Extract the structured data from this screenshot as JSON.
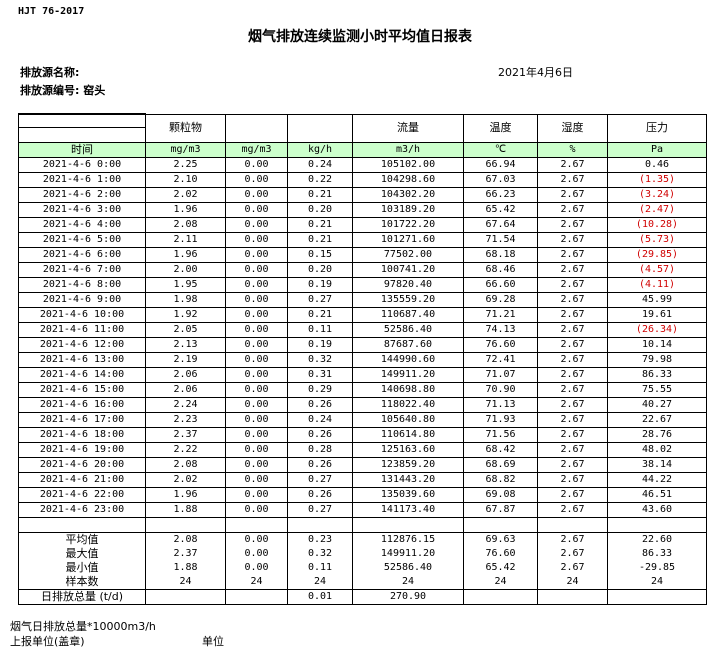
{
  "standard": "HJT  76-2017",
  "title": "烟气排放连续监测小时平均值日报表",
  "source_name_label": "排放源名称:",
  "source_id_label": "排放源编号: 窑头",
  "date": "2021年4月6日",
  "headers": [
    "",
    "颗粒物",
    "",
    "",
    "流量",
    "温度",
    "湿度",
    "压力"
  ],
  "units": [
    "时间",
    "mg/m3",
    "mg/m3",
    "kg/h",
    "m3/h",
    "℃",
    "%",
    "Pa"
  ],
  "rows": [
    [
      "2021-4-6 0:00",
      "2.25",
      "0.00",
      "0.24",
      "105102.00",
      "66.94",
      "2.67",
      "0.46"
    ],
    [
      "2021-4-6 1:00",
      "2.10",
      "0.00",
      "0.22",
      "104298.60",
      "67.03",
      "2.67",
      "(1.35)"
    ],
    [
      "2021-4-6 2:00",
      "2.02",
      "0.00",
      "0.21",
      "104302.20",
      "66.23",
      "2.67",
      "(3.24)"
    ],
    [
      "2021-4-6 3:00",
      "1.96",
      "0.00",
      "0.20",
      "103189.20",
      "65.42",
      "2.67",
      "(2.47)"
    ],
    [
      "2021-4-6 4:00",
      "2.08",
      "0.00",
      "0.21",
      "101722.20",
      "67.64",
      "2.67",
      "(10.28)"
    ],
    [
      "2021-4-6 5:00",
      "2.11",
      "0.00",
      "0.21",
      "101271.60",
      "71.54",
      "2.67",
      "(5.73)"
    ],
    [
      "2021-4-6 6:00",
      "1.96",
      "0.00",
      "0.15",
      "77502.00",
      "68.18",
      "2.67",
      "(29.85)"
    ],
    [
      "2021-4-6 7:00",
      "2.00",
      "0.00",
      "0.20",
      "100741.20",
      "68.46",
      "2.67",
      "(4.57)"
    ],
    [
      "2021-4-6 8:00",
      "1.95",
      "0.00",
      "0.19",
      "97820.40",
      "66.60",
      "2.67",
      "(4.11)"
    ],
    [
      "2021-4-6 9:00",
      "1.98",
      "0.00",
      "0.27",
      "135559.20",
      "69.28",
      "2.67",
      "45.99"
    ],
    [
      "2021-4-6 10:00",
      "1.92",
      "0.00",
      "0.21",
      "110687.40",
      "71.21",
      "2.67",
      "19.61"
    ],
    [
      "2021-4-6 11:00",
      "2.05",
      "0.00",
      "0.11",
      "52586.40",
      "74.13",
      "2.67",
      "(26.34)"
    ],
    [
      "2021-4-6 12:00",
      "2.13",
      "0.00",
      "0.19",
      "87687.60",
      "76.60",
      "2.67",
      "10.14"
    ],
    [
      "2021-4-6 13:00",
      "2.19",
      "0.00",
      "0.32",
      "144990.60",
      "72.41",
      "2.67",
      "79.98"
    ],
    [
      "2021-4-6 14:00",
      "2.06",
      "0.00",
      "0.31",
      "149911.20",
      "71.07",
      "2.67",
      "86.33"
    ],
    [
      "2021-4-6 15:00",
      "2.06",
      "0.00",
      "0.29",
      "140698.80",
      "70.90",
      "2.67",
      "75.55"
    ],
    [
      "2021-4-6 16:00",
      "2.24",
      "0.00",
      "0.26",
      "118022.40",
      "71.13",
      "2.67",
      "40.27"
    ],
    [
      "2021-4-6 17:00",
      "2.23",
      "0.00",
      "0.24",
      "105640.80",
      "71.93",
      "2.67",
      "22.67"
    ],
    [
      "2021-4-6 18:00",
      "2.37",
      "0.00",
      "0.26",
      "110614.80",
      "71.56",
      "2.67",
      "28.76"
    ],
    [
      "2021-4-6 19:00",
      "2.22",
      "0.00",
      "0.28",
      "125163.60",
      "68.42",
      "2.67",
      "48.02"
    ],
    [
      "2021-4-6 20:00",
      "2.08",
      "0.00",
      "0.26",
      "123859.20",
      "68.69",
      "2.67",
      "38.14"
    ],
    [
      "2021-4-6 21:00",
      "2.02",
      "0.00",
      "0.27",
      "131443.20",
      "68.82",
      "2.67",
      "44.22"
    ],
    [
      "2021-4-6 22:00",
      "1.96",
      "0.00",
      "0.26",
      "135039.60",
      "69.08",
      "2.67",
      "46.51"
    ],
    [
      "2021-4-6 23:00",
      "1.88",
      "0.00",
      "0.27",
      "141173.40",
      "67.87",
      "2.67",
      "43.60"
    ]
  ],
  "stats": [
    [
      "平均值",
      "2.08",
      "0.00",
      "0.23",
      "112876.15",
      "69.63",
      "2.67",
      "22.60"
    ],
    [
      "最大值",
      "2.37",
      "0.00",
      "0.32",
      "149911.20",
      "76.60",
      "2.67",
      "86.33"
    ],
    [
      "最小值",
      "1.88",
      "0.00",
      "0.11",
      "52586.40",
      "65.42",
      "2.67",
      "-29.85"
    ],
    [
      "样本数",
      "24",
      "24",
      "24",
      "24",
      "24",
      "24",
      "24"
    ],
    [
      "日排放总量 (t/d)",
      "",
      "",
      "0.01",
      "270.90",
      "",
      "",
      ""
    ]
  ],
  "negative_color": "#d00000",
  "header_bg": "#ccffcc",
  "footer": {
    "line1": "烟气日排放总量*10000m3/h",
    "report_unit": "上报单位(盖章)",
    "unit": "单位"
  }
}
